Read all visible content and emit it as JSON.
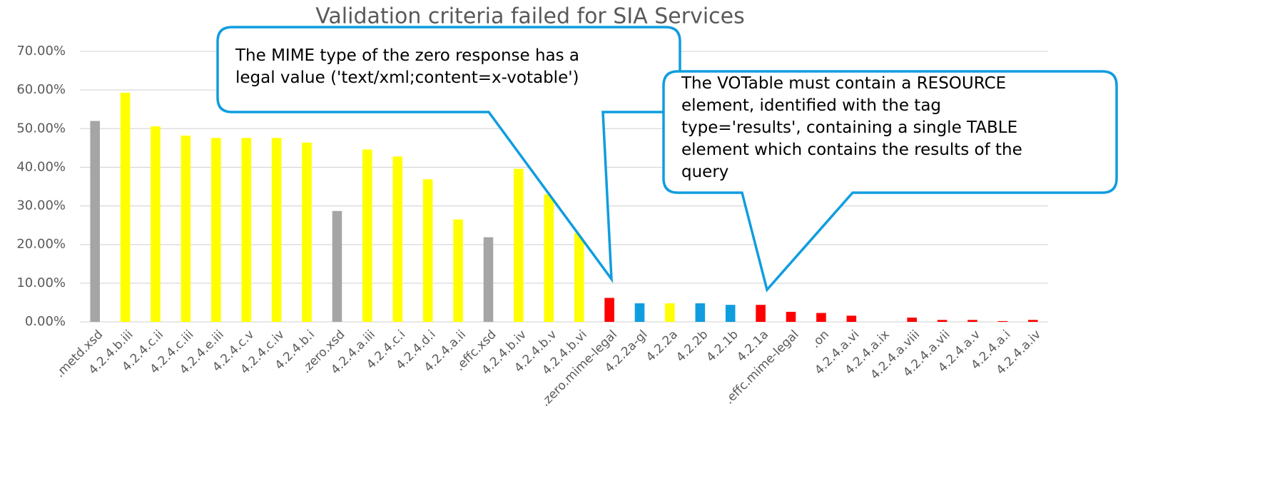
{
  "chart_data": {
    "type": "bar",
    "title": "Validation criteria failed for SIA Services",
    "categories": [
      ".metd.xsd",
      "4.2.4.b.iii",
      "4.2.4.c.ii",
      "4.2.4.c.iii",
      "4.2.4.e.iii",
      "4.2.4.c.v",
      "4.2.4.c.iv",
      "4.2.4.b.i",
      ".zero.xsd",
      "4.2.4.a.iii",
      "4.2.4.c.i",
      "4.2.4.d.i",
      "4.2.4.a.ii",
      ".effc.xsd",
      "4.2.4.b.iv",
      "4.2.4.b.v",
      "4.2.4.b.vi",
      ".zero.mime-legal",
      "4.2.2a-gl",
      "4.2.2a",
      "4.2.2b",
      "4.2.1b",
      "4.2.1a",
      ".effc.mime-legal",
      ".on",
      "4.2.4.a.vi",
      "4.2.4.a.ix",
      "4.2.4.a.viii",
      "4.2.4.a.vii",
      "4.2.4.a.v",
      "4.2.4.a.i",
      "4.2.4.a.iv"
    ],
    "values": [
      52,
      59.3,
      50.6,
      48.2,
      47.6,
      47.6,
      47.6,
      46.4,
      28.7,
      44.6,
      42.8,
      36.9,
      26.5,
      21.9,
      39.6,
      33,
      23,
      6.2,
      4.8,
      4.8,
      4.8,
      4.4,
      4.4,
      2.6,
      2.3,
      1.6,
      0,
      1.1,
      0.5,
      0.5,
      0.2,
      0.5
    ],
    "colors": [
      "#a5a5a5",
      "#ffff00",
      "#ffff00",
      "#ffff00",
      "#ffff00",
      "#ffff00",
      "#ffff00",
      "#ffff00",
      "#a5a5a5",
      "#ffff00",
      "#ffff00",
      "#ffff00",
      "#ffff00",
      "#a5a5a5",
      "#ffff00",
      "#ffff00",
      "#ffff00",
      "#ff0000",
      "#0f9ddf",
      "#ffff00",
      "#0f9ddf",
      "#0f9ddf",
      "#ff0000",
      "#ff0000",
      "#ff0000",
      "#ff0000",
      "#ff0000",
      "#ff0000",
      "#ff0000",
      "#ff0000",
      "#ff0000",
      "#ff0000"
    ],
    "ylim": [
      0,
      70
    ],
    "yticks": [
      {
        "value": 0,
        "label": "0.00%"
      },
      {
        "value": 10,
        "label": "10.00%"
      },
      {
        "value": 20,
        "label": "20.00%"
      },
      {
        "value": 30,
        "label": "30.00%"
      },
      {
        "value": 40,
        "label": "40.00%"
      },
      {
        "value": 50,
        "label": "50.00%"
      },
      {
        "value": 60,
        "label": "60.00%"
      },
      {
        "value": 70,
        "label": "70.00%"
      }
    ],
    "grid": true,
    "annotations": [
      {
        "lines": [
          "The MIME type of the zero response has a",
          "legal value ('text/xml;content=x-votable')"
        ]
      },
      {
        "lines": [
          "The VOTable must contain a RESOURCE",
          "element, identified with the tag",
          "type='results', containing a single TABLE",
          "element which contains the results of the",
          "query"
        ]
      }
    ]
  }
}
